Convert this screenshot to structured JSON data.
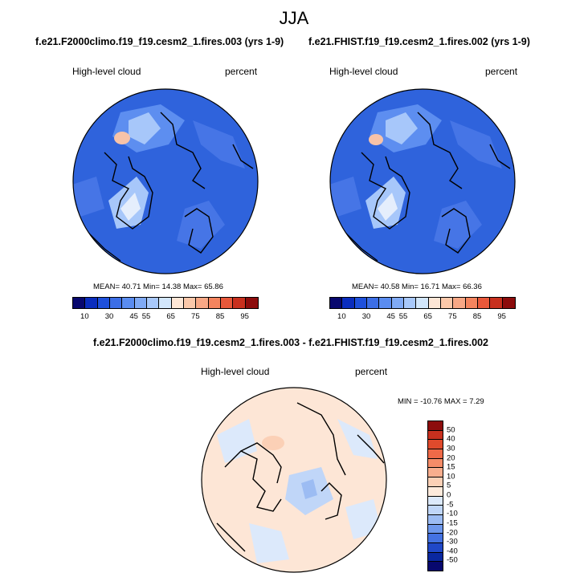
{
  "season": "JJA",
  "panels": [
    {
      "title": "f.e21.F2000climo.f19_f19.cesm2_1.fires.003 (yrs 1-9)",
      "variable": "High-level cloud",
      "units": "percent",
      "stats": "MEAN=  40.71  Min=  14.38  Max=  65.86"
    },
    {
      "title": "f.e21.FHIST.f19_f19.cesm2_1.fires.002 (yrs 1-9)",
      "variable": "High-level cloud",
      "units": "percent",
      "stats": "MEAN=  40.58  Min=  16.71  Max=  66.36"
    }
  ],
  "diff_panel": {
    "title": "f.e21.F2000climo.f19_f19.cesm2_1.fires.003 - f.e21.FHIST.f19_f19.cesm2_1.fires.002",
    "variable": "High-level cloud",
    "units": "percent",
    "stats": "MIN = -10.76 MAX =   7.29"
  },
  "colorbar_abs": {
    "labels": [
      "10",
      "30",
      "45",
      "55",
      "65",
      "75",
      "85",
      "95"
    ],
    "colors": [
      "#08086e",
      "#0a2dbe",
      "#1e50dc",
      "#3c6ee6",
      "#5a8cf0",
      "#80aaf5",
      "#a8c8fa",
      "#d2e6fb",
      "#fde6d6",
      "#fbc8aa",
      "#f8a886",
      "#f4845e",
      "#e8583a",
      "#c8301e",
      "#8c0c0c"
    ]
  },
  "colorbar_diff": {
    "labels": [
      "50",
      "40",
      "30",
      "20",
      "15",
      "10",
      "5",
      "0",
      "-5",
      "-10",
      "-15",
      "-20",
      "-30",
      "-40",
      "-50"
    ],
    "colors": [
      "#8c0c0c",
      "#c8301e",
      "#e04a2c",
      "#ee6a48",
      "#f58c68",
      "#f8ae8e",
      "#fbd0b6",
      "#fdeadc",
      "#dce9fb",
      "#c0d6f8",
      "#9cbcf3",
      "#6e98ec",
      "#4472e2",
      "#2048c8",
      "#0a28a0",
      "#08086e"
    ]
  }
}
